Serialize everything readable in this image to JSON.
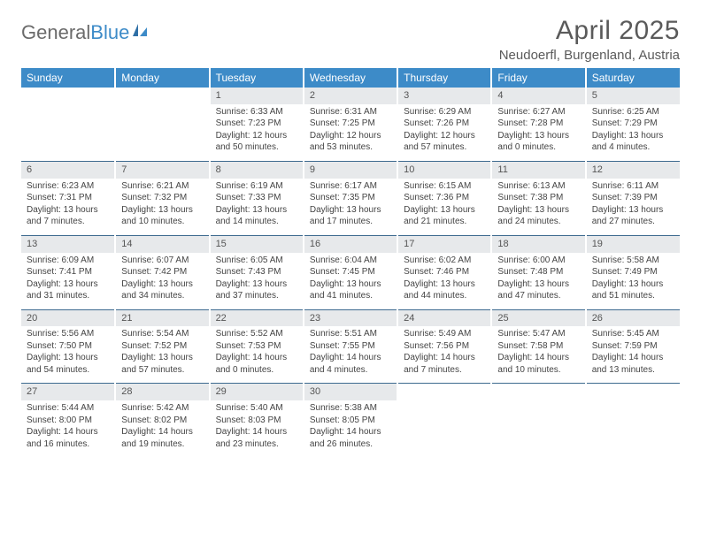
{
  "logo": {
    "text_gray": "General",
    "text_blue": "Blue"
  },
  "title": "April 2025",
  "location": "Neudoerfl, Burgenland, Austria",
  "colors": {
    "header_bg": "#3d8bc8",
    "header_text": "#ffffff",
    "daynum_bg": "#e7e9eb",
    "row_border": "#3d6a8f",
    "body_text": "#444444",
    "title_text": "#5a5a5a"
  },
  "day_headers": [
    "Sunday",
    "Monday",
    "Tuesday",
    "Wednesday",
    "Thursday",
    "Friday",
    "Saturday"
  ],
  "weeks": [
    [
      null,
      null,
      {
        "n": "1",
        "sr": "6:33 AM",
        "ss": "7:23 PM",
        "dl": "12 hours and 50 minutes."
      },
      {
        "n": "2",
        "sr": "6:31 AM",
        "ss": "7:25 PM",
        "dl": "12 hours and 53 minutes."
      },
      {
        "n": "3",
        "sr": "6:29 AM",
        "ss": "7:26 PM",
        "dl": "12 hours and 57 minutes."
      },
      {
        "n": "4",
        "sr": "6:27 AM",
        "ss": "7:28 PM",
        "dl": "13 hours and 0 minutes."
      },
      {
        "n": "5",
        "sr": "6:25 AM",
        "ss": "7:29 PM",
        "dl": "13 hours and 4 minutes."
      }
    ],
    [
      {
        "n": "6",
        "sr": "6:23 AM",
        "ss": "7:31 PM",
        "dl": "13 hours and 7 minutes."
      },
      {
        "n": "7",
        "sr": "6:21 AM",
        "ss": "7:32 PM",
        "dl": "13 hours and 10 minutes."
      },
      {
        "n": "8",
        "sr": "6:19 AM",
        "ss": "7:33 PM",
        "dl": "13 hours and 14 minutes."
      },
      {
        "n": "9",
        "sr": "6:17 AM",
        "ss": "7:35 PM",
        "dl": "13 hours and 17 minutes."
      },
      {
        "n": "10",
        "sr": "6:15 AM",
        "ss": "7:36 PM",
        "dl": "13 hours and 21 minutes."
      },
      {
        "n": "11",
        "sr": "6:13 AM",
        "ss": "7:38 PM",
        "dl": "13 hours and 24 minutes."
      },
      {
        "n": "12",
        "sr": "6:11 AM",
        "ss": "7:39 PM",
        "dl": "13 hours and 27 minutes."
      }
    ],
    [
      {
        "n": "13",
        "sr": "6:09 AM",
        "ss": "7:41 PM",
        "dl": "13 hours and 31 minutes."
      },
      {
        "n": "14",
        "sr": "6:07 AM",
        "ss": "7:42 PM",
        "dl": "13 hours and 34 minutes."
      },
      {
        "n": "15",
        "sr": "6:05 AM",
        "ss": "7:43 PM",
        "dl": "13 hours and 37 minutes."
      },
      {
        "n": "16",
        "sr": "6:04 AM",
        "ss": "7:45 PM",
        "dl": "13 hours and 41 minutes."
      },
      {
        "n": "17",
        "sr": "6:02 AM",
        "ss": "7:46 PM",
        "dl": "13 hours and 44 minutes."
      },
      {
        "n": "18",
        "sr": "6:00 AM",
        "ss": "7:48 PM",
        "dl": "13 hours and 47 minutes."
      },
      {
        "n": "19",
        "sr": "5:58 AM",
        "ss": "7:49 PM",
        "dl": "13 hours and 51 minutes."
      }
    ],
    [
      {
        "n": "20",
        "sr": "5:56 AM",
        "ss": "7:50 PM",
        "dl": "13 hours and 54 minutes."
      },
      {
        "n": "21",
        "sr": "5:54 AM",
        "ss": "7:52 PM",
        "dl": "13 hours and 57 minutes."
      },
      {
        "n": "22",
        "sr": "5:52 AM",
        "ss": "7:53 PM",
        "dl": "14 hours and 0 minutes."
      },
      {
        "n": "23",
        "sr": "5:51 AM",
        "ss": "7:55 PM",
        "dl": "14 hours and 4 minutes."
      },
      {
        "n": "24",
        "sr": "5:49 AM",
        "ss": "7:56 PM",
        "dl": "14 hours and 7 minutes."
      },
      {
        "n": "25",
        "sr": "5:47 AM",
        "ss": "7:58 PM",
        "dl": "14 hours and 10 minutes."
      },
      {
        "n": "26",
        "sr": "5:45 AM",
        "ss": "7:59 PM",
        "dl": "14 hours and 13 minutes."
      }
    ],
    [
      {
        "n": "27",
        "sr": "5:44 AM",
        "ss": "8:00 PM",
        "dl": "14 hours and 16 minutes."
      },
      {
        "n": "28",
        "sr": "5:42 AM",
        "ss": "8:02 PM",
        "dl": "14 hours and 19 minutes."
      },
      {
        "n": "29",
        "sr": "5:40 AM",
        "ss": "8:03 PM",
        "dl": "14 hours and 23 minutes."
      },
      {
        "n": "30",
        "sr": "5:38 AM",
        "ss": "8:05 PM",
        "dl": "14 hours and 26 minutes."
      },
      null,
      null,
      null
    ]
  ],
  "labels": {
    "sunrise": "Sunrise:",
    "sunset": "Sunset:",
    "daylight": "Daylight:"
  }
}
